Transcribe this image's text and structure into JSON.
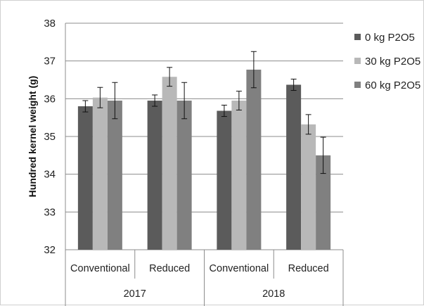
{
  "chart_data": {
    "type": "bar",
    "title": "",
    "xlabel": "",
    "ylabel": "Hundred kernel weight (g)",
    "ylim": [
      32,
      38
    ],
    "yticks": [
      32,
      33,
      34,
      35,
      36,
      37,
      38
    ],
    "grid": true,
    "legend_position": "right",
    "groups": [
      {
        "label": "2017",
        "categories": [
          "Conventional",
          "Reduced"
        ]
      },
      {
        "label": "2018",
        "categories": [
          "Conventional",
          "Reduced"
        ]
      }
    ],
    "categories": [
      "Conventional",
      "Reduced",
      "Conventional",
      "Reduced"
    ],
    "series": [
      {
        "name": "0 kg P2O5",
        "color": "#5b5b5b",
        "values": [
          35.8,
          35.95,
          35.68,
          36.37
        ],
        "errors": [
          0.15,
          0.15,
          0.15,
          0.15
        ]
      },
      {
        "name": "30 kg P2O5",
        "color": "#b8b8b8",
        "values": [
          36.03,
          36.58,
          35.95,
          35.32
        ],
        "errors": [
          0.27,
          0.25,
          0.25,
          0.26
        ]
      },
      {
        "name": "60 kg P2O5",
        "color": "#808080",
        "values": [
          35.95,
          35.95,
          36.77,
          34.5
        ],
        "errors": [
          0.48,
          0.48,
          0.48,
          0.48
        ]
      }
    ]
  }
}
